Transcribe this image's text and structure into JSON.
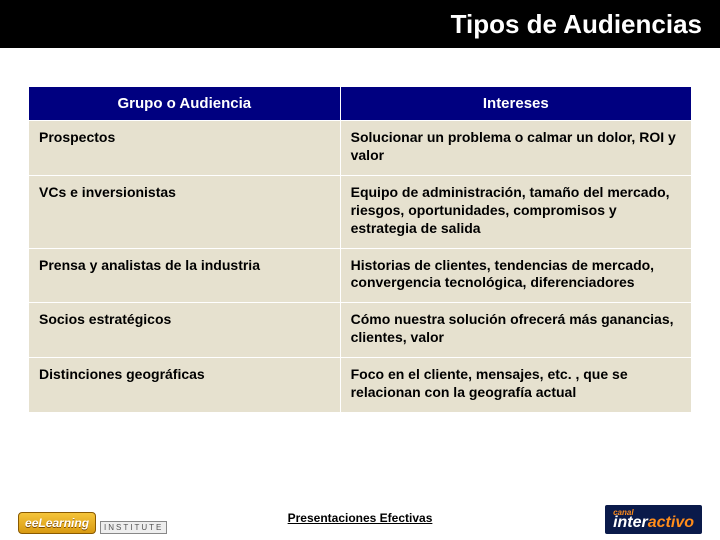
{
  "title": "Tipos de Audiencias",
  "table": {
    "columns": [
      "Grupo o Audiencia",
      "Intereses"
    ],
    "rows": [
      [
        "Prospectos",
        "Solucionar un problema o calmar un dolor, ROI y valor"
      ],
      [
        "VCs e inversionistas",
        "Equipo de administración, tamaño del mercado, riesgos, oportunidades, compromisos y estrategia de salida"
      ],
      [
        "Prensa y analistas de la industria",
        "Historias de clientes, tendencias de mercado, convergencia tecnológica, diferenciadores"
      ],
      [
        "Socios estratégicos",
        "Cómo nuestra solución ofrecerá más ganancias, clientes, valor"
      ],
      [
        "Distinciones geográficas",
        "Foco en el cliente, mensajes, etc. , que se relacionan con la geografía actual"
      ]
    ],
    "header_bg": "#000080",
    "header_color": "#ffffff",
    "cell_bg": "#e6e1cf",
    "cell_color": "#000000",
    "border_color": "#ffffff",
    "col_widths": [
      "47%",
      "53%"
    ],
    "header_fontsize": 15,
    "cell_fontsize": 14
  },
  "footer": {
    "center_text": "Presentaciones Efectivas",
    "left_logo": {
      "name": "eLearning",
      "sub": "INSTITUTE"
    },
    "right_logo": {
      "small": "canal",
      "big_white": "inter",
      "big_orange": "activo"
    }
  },
  "colors": {
    "title_bar_bg": "#000000",
    "title_color": "#ffffff",
    "page_bg": "#ffffff",
    "footer_accent_orange": "#ff8c1a",
    "footer_right_bg": "#0a1a4a"
  },
  "typography": {
    "family": "Arial",
    "title_fontsize": 26,
    "footer_fontsize": 12
  }
}
